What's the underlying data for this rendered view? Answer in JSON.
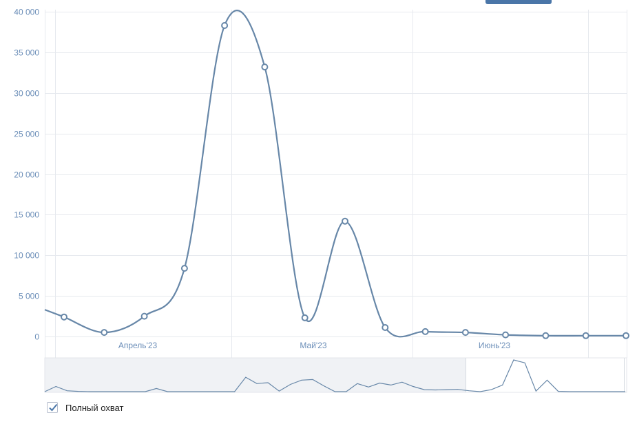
{
  "chart_data": {
    "type": "line",
    "title": "",
    "xlabel": "",
    "ylabel": "",
    "ylim": [
      0,
      40000
    ],
    "yticks": [
      0,
      5000,
      10000,
      15000,
      20000,
      25000,
      30000,
      35000,
      40000
    ],
    "ytick_labels": [
      "0",
      "5 000",
      "10 000",
      "15 000",
      "20 000",
      "25 000",
      "30 000",
      "35 000",
      "40 000"
    ],
    "xtick_labels": [
      "Апрель'23",
      "Май'23",
      "Июнь'23"
    ],
    "grid": true,
    "series": [
      {
        "values": [
          2400,
          500,
          2500,
          8400,
          38300,
          33200,
          2300,
          14200,
          1100,
          600,
          500,
          200,
          100,
          100,
          100
        ],
        "color": "#6787a8"
      }
    ],
    "navigator": {
      "values": [
        0,
        1800,
        300,
        100,
        0,
        0,
        0,
        0,
        0,
        0,
        1100,
        0,
        0,
        0,
        0,
        0,
        0,
        0,
        5000,
        2800,
        3100,
        200,
        2500,
        4000,
        4200,
        2000,
        0,
        0,
        2800,
        1600,
        3000,
        2300,
        3300,
        1800,
        700,
        600,
        700,
        800,
        300,
        0,
        700,
        2300,
        11000,
        10000,
        200,
        4000,
        100,
        0,
        0,
        0,
        0,
        0,
        0
      ],
      "color": "#6787a8"
    }
  },
  "legend": {
    "checkbox_checked": true,
    "label": "Полный охват"
  },
  "colors": {
    "line": "#6787a8",
    "grid": "#e6e9ee",
    "axis_text": "#6b8eb8",
    "navigator_mask": "#f0f2f5",
    "accent": "#4a76a8"
  }
}
